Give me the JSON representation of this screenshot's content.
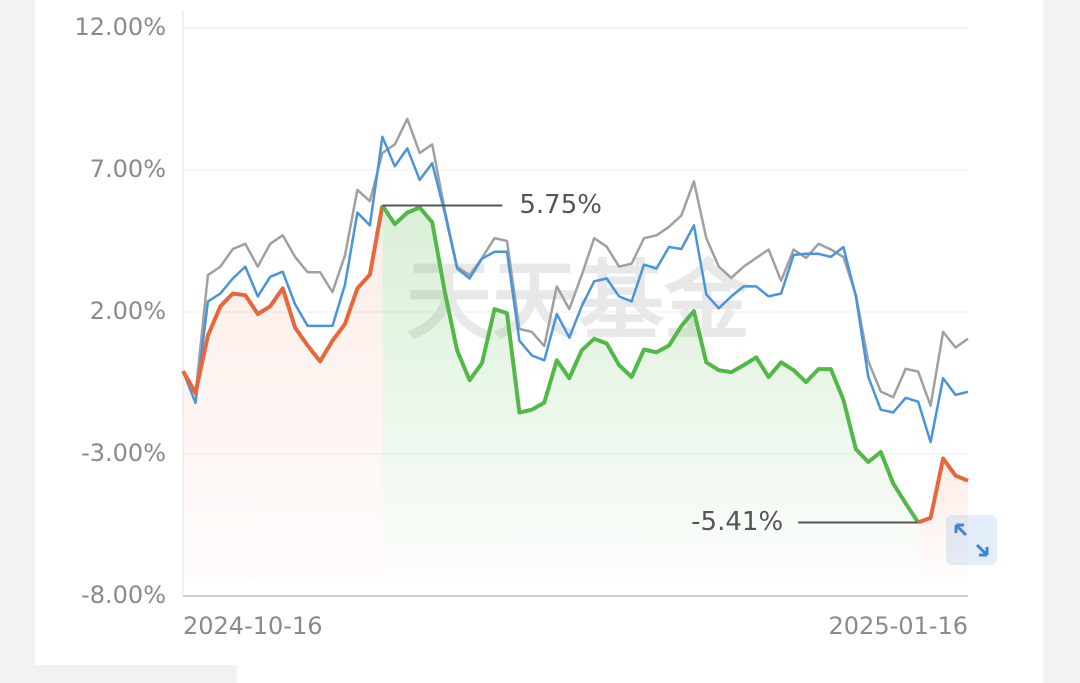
{
  "chart_data": {
    "type": "line",
    "watermark": "天天基金",
    "ylim": [
      -8,
      12
    ],
    "yticks": [
      {
        "value": 12,
        "label": "12.00%"
      },
      {
        "value": 7,
        "label": "7.00%"
      },
      {
        "value": 2,
        "label": "2.00%"
      },
      {
        "value": -3,
        "label": "-3.00%"
      },
      {
        "value": -8,
        "label": "-8.00%"
      }
    ],
    "grid": true,
    "categories": [
      "2024-10-16",
      null,
      null,
      null,
      null,
      null,
      null,
      null,
      null,
      null,
      null,
      null,
      null,
      null,
      null,
      null,
      null,
      null,
      null,
      null,
      null,
      null,
      null,
      null,
      null,
      null,
      null,
      null,
      null,
      null,
      null,
      null,
      null,
      null,
      null,
      null,
      null,
      null,
      null,
      null,
      null,
      null,
      null,
      null,
      null,
      null,
      null,
      null,
      null,
      null,
      null,
      null,
      null,
      null,
      null,
      null,
      null,
      null,
      null,
      null,
      null,
      null,
      null,
      "2025-01-16"
    ],
    "series": [
      {
        "color": "#a0a0a0",
        "values": [
          -0.08,
          -0.9,
          3.3,
          3.6,
          4.22,
          4.4,
          3.6,
          4.4,
          4.7,
          3.94,
          3.4,
          3.4,
          2.7,
          4.0,
          6.3,
          5.9,
          7.6,
          7.9,
          8.8,
          7.6,
          7.9,
          5.6,
          3.6,
          3.3,
          3.9,
          4.6,
          4.5,
          1.4,
          1.3,
          0.8,
          2.9,
          2.1,
          3.3,
          4.6,
          4.3,
          3.6,
          3.7,
          4.6,
          4.7,
          5.0,
          5.4,
          6.6,
          4.6,
          3.6,
          3.2,
          3.6,
          3.9,
          4.2,
          3.1,
          4.2,
          3.9,
          4.4,
          4.2,
          3.94,
          2.6,
          0.26,
          -0.8,
          -1.0,
          0.0,
          -0.1,
          -1.3,
          1.3,
          0.75,
          1.06
        ]
      },
      {
        "color": "#4a94dc",
        "values": [
          -0.08,
          -1.2,
          2.37,
          2.65,
          3.18,
          3.6,
          2.55,
          3.24,
          3.42,
          2.27,
          1.51,
          1.51,
          1.51,
          2.97,
          5.5,
          5.05,
          8.17,
          7.13,
          7.76,
          6.65,
          7.24,
          5.5,
          3.53,
          3.18,
          3.88,
          4.12,
          4.12,
          0.99,
          0.47,
          0.3,
          1.93,
          1.1,
          2.2,
          3.08,
          3.18,
          2.55,
          2.37,
          3.67,
          3.53,
          4.29,
          4.22,
          5.05,
          2.62,
          2.13,
          2.55,
          2.9,
          2.9,
          2.55,
          2.65,
          4.01,
          4.05,
          4.05,
          3.94,
          4.29,
          2.55,
          -0.29,
          -1.44,
          -1.54,
          -1.02,
          -1.16,
          -2.58,
          -0.33,
          -0.92,
          -0.81
        ]
      },
      {
        "color": "#e8663a",
        "values": [
          -0.08,
          -0.85,
          1.17,
          2.2,
          2.65,
          2.59,
          1.93,
          2.2,
          2.83,
          1.45,
          0.82,
          0.26,
          0.99,
          1.58,
          2.83,
          3.32,
          5.75,
          5.09,
          5.5,
          5.68,
          5.16,
          2.73,
          0.65,
          -0.4,
          0.2,
          2.1,
          1.96,
          -1.54,
          -1.44,
          -1.19,
          0.3,
          -0.33,
          0.65,
          1.06,
          0.89,
          0.13,
          -0.29,
          0.68,
          0.58,
          0.82,
          1.51,
          2.03,
          0.23,
          -0.05,
          -0.12,
          0.13,
          0.4,
          -0.29,
          0.23,
          -0.05,
          -0.47,
          -0.01,
          -0.01,
          -1.09,
          -2.83,
          -3.28,
          -2.93,
          -4.04,
          -4.74,
          -5.41,
          -5.25,
          -3.16,
          -3.76,
          -3.94
        ]
      }
    ],
    "drawdown_color": "#52b848",
    "annotations": [
      {
        "value": 5.75,
        "label": "5.75%"
      },
      {
        "value": -5.41,
        "label": "-5.41%"
      }
    ]
  }
}
